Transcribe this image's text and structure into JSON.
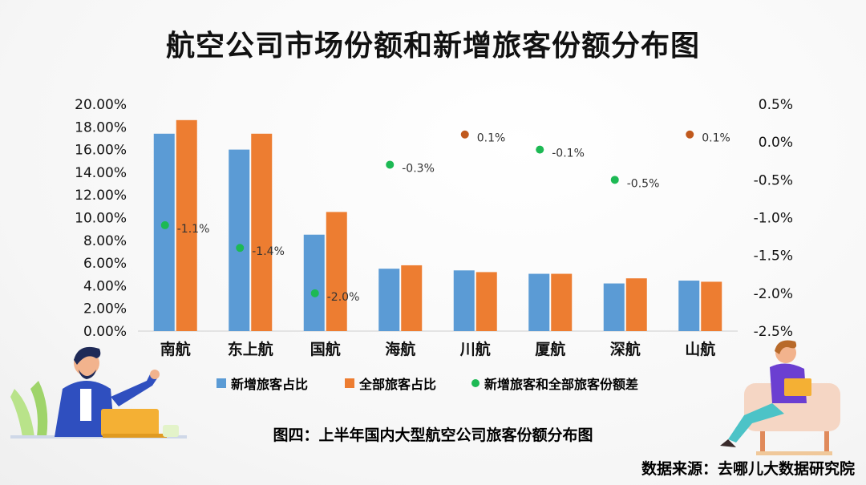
{
  "title": "航空公司市场份额和新增旅客份额分布图",
  "caption": "图四：上半年国内大型航空公司旅客份额分布图",
  "source": "数据来源：去哪儿大数据研究院",
  "colors": {
    "new": "#5b9bd5",
    "all": "#ed7d31",
    "dot_green": "#1db954",
    "dot_orange": "#c0591d"
  },
  "chart_data": {
    "type": "bar",
    "categories": [
      "南航",
      "东上航",
      "国航",
      "海航",
      "川航",
      "厦航",
      "深航",
      "山航"
    ],
    "series": [
      {
        "name": "新增旅客占比",
        "values": [
          17.4,
          16.0,
          8.5,
          5.5,
          5.35,
          5.05,
          4.2,
          4.45
        ]
      },
      {
        "name": "全部旅客占比",
        "values": [
          18.6,
          17.4,
          10.5,
          5.8,
          5.2,
          5.05,
          4.65,
          4.35
        ]
      }
    ],
    "diff_series": {
      "name": "新增旅客和全部旅客份额差",
      "values": [
        -1.1,
        -1.4,
        -2.0,
        -0.3,
        0.1,
        -0.1,
        -0.5,
        0.1
      ],
      "labels": [
        "-1.1%",
        "-1.4%",
        "-2.0%",
        "-0.3%",
        "0.1%",
        "-0.1%",
        "-0.5%",
        "0.1%"
      ]
    },
    "y_left": {
      "min": 0,
      "max": 20,
      "ticks": [
        "0.00%",
        "2.00%",
        "4.00%",
        "6.00%",
        "8.00%",
        "10.00%",
        "12.00%",
        "14.00%",
        "16.00%",
        "18.00%",
        "20.00%"
      ]
    },
    "y_right": {
      "min": -2.5,
      "max": 0.5,
      "ticks": [
        "0.5%",
        "0.0%",
        "-0.5%",
        "-1.0%",
        "-1.5%",
        "-2.0%",
        "-2.5%"
      ]
    },
    "legend": [
      "新增旅客占比",
      "全部旅客占比",
      "新增旅客和全部旅客份额差"
    ]
  }
}
